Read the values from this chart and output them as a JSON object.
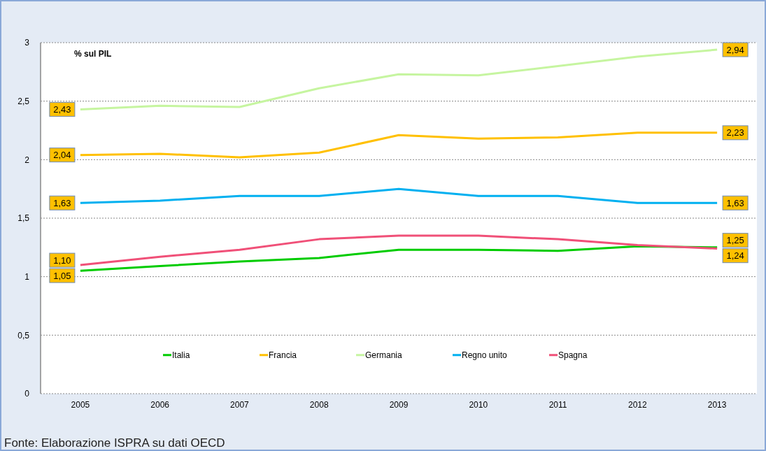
{
  "chart_data": {
    "type": "line",
    "ylabel": "% sul PIL",
    "annotations": [
      "Fonte: Elaborazione ISPRA su dati OECD"
    ],
    "categories": [
      "2005",
      "2006",
      "2007",
      "2008",
      "2009",
      "2010",
      "2011",
      "2012",
      "2013"
    ],
    "ylim": [
      0,
      3
    ],
    "yticks": [
      0,
      {
        "value": 0.5,
        "label": "0,5"
      },
      1,
      {
        "value": 1.5,
        "label": "1,5"
      },
      2,
      {
        "value": 2.5,
        "label": "2,5"
      },
      3
    ],
    "grid": "y",
    "legend": "bottom",
    "marker": "none",
    "series": [
      {
        "name": "Italia",
        "color": "#00cc00",
        "values": [
          1.05,
          1.09,
          1.13,
          1.16,
          1.23,
          1.23,
          1.22,
          1.26,
          1.25
        ],
        "value_labels": [
          "1,05",
          null,
          null,
          null,
          null,
          null,
          null,
          null,
          "1,25"
        ]
      },
      {
        "name": "Francia",
        "color": "#ffc000",
        "values": [
          2.04,
          2.05,
          2.02,
          2.06,
          2.21,
          2.18,
          2.19,
          2.23,
          2.23
        ],
        "value_labels": [
          "2,04",
          null,
          null,
          null,
          null,
          null,
          null,
          null,
          "2,23"
        ]
      },
      {
        "name": "Germania",
        "color": "#c6f5a0",
        "values": [
          2.43,
          2.46,
          2.45,
          2.61,
          2.73,
          2.72,
          2.8,
          2.88,
          2.94
        ],
        "value_labels": [
          "2,43",
          null,
          null,
          null,
          null,
          null,
          null,
          null,
          "2,94"
        ]
      },
      {
        "name": "Regno unito",
        "color": "#00b0f0",
        "values": [
          1.63,
          1.65,
          1.69,
          1.69,
          1.75,
          1.69,
          1.69,
          1.63,
          1.63
        ],
        "value_labels": [
          "1,63",
          null,
          null,
          null,
          null,
          null,
          null,
          null,
          "1,63"
        ]
      },
      {
        "name": "Spagna",
        "color": "#f05078",
        "values": [
          1.1,
          1.17,
          1.23,
          1.32,
          1.35,
          1.35,
          1.32,
          1.27,
          1.24
        ],
        "value_labels": [
          "1,10",
          null,
          null,
          null,
          null,
          null,
          null,
          null,
          "1,24"
        ]
      }
    ]
  }
}
